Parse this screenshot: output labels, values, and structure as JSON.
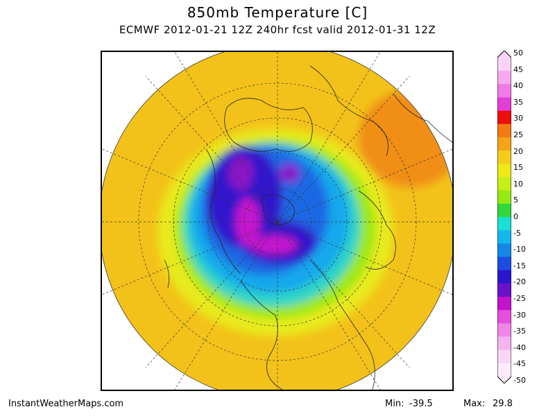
{
  "header": {
    "title": "850mb Temperature [C]",
    "subtitle": "ECMWF 2012-01-21 12Z 240hr fcst valid 2012-01-31 12Z"
  },
  "colorbar": {
    "labels": [
      "50",
      "45",
      "40",
      "35",
      "30",
      "25",
      "20",
      "15",
      "10",
      "5",
      "0",
      "-5",
      "-10",
      "-15",
      "-20",
      "-25",
      "-30",
      "-35",
      "-40",
      "-45",
      "-50"
    ],
    "bands": [
      "#fbd3f7",
      "#f7a8ef",
      "#f07ae6",
      "#e23fd6",
      "#ee0e0e",
      "#f27a12",
      "#f5a517",
      "#f5cc1c",
      "#f0e817",
      "#c6ee18",
      "#94ea14",
      "#30d83c",
      "#19e0d4",
      "#14b6ee",
      "#1388e6",
      "#1a4ee0",
      "#2a16ce",
      "#6b12c8",
      "#c114cc",
      "#e64ede",
      "#ef86e8",
      "#f5b4f0",
      "#f9d6f6",
      "#fcecfb"
    ]
  },
  "footer": {
    "site": "InstantWeatherMaps.com",
    "min_label": "Min:",
    "min_value": "-39.5",
    "max_label": "Max:",
    "max_value": "29.8"
  }
}
